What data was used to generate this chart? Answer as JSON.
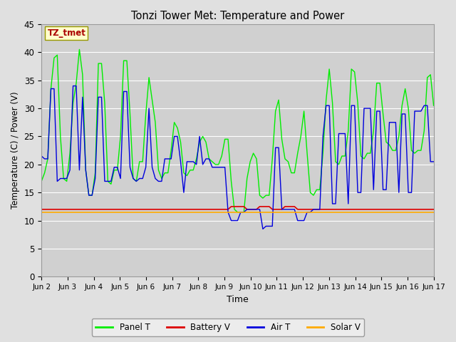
{
  "title": "Tonzi Tower Met: Temperature and Power",
  "xlabel": "Time",
  "ylabel": "Temperature (C) / Power (V)",
  "annotation": "TZ_tmet",
  "xlim": [
    0,
    15
  ],
  "ylim": [
    0,
    45
  ],
  "yticks": [
    0,
    5,
    10,
    15,
    20,
    25,
    30,
    35,
    40,
    45
  ],
  "xtick_labels": [
    "Jun 2",
    "Jun 3",
    "Jun 4",
    "Jun 5",
    "Jun 6",
    "Jun 7",
    "Jun 8",
    "Jun 9",
    "Jun 10",
    "Jun 11",
    "Jun 12",
    "Jun 13",
    "Jun 14",
    "Jun 15",
    "Jun 16",
    "Jun 17"
  ],
  "background_color": "#e0e0e0",
  "plot_bg_color": "#d0d0d0",
  "grid_color": "#ffffff",
  "panel_t_color": "#00ee00",
  "battery_v_color": "#dd0000",
  "air_t_color": "#0000dd",
  "solar_v_color": "#ffaa00",
  "panel_t": [
    17.0,
    18.5,
    21.0,
    33.5,
    39.0,
    39.5,
    25.0,
    17.5,
    17.0,
    22.0,
    31.0,
    34.5,
    40.5,
    36.0,
    19.0,
    14.5,
    14.5,
    18.5,
    38.0,
    38.0,
    31.0,
    17.0,
    16.5,
    19.0,
    19.0,
    25.0,
    38.5,
    38.5,
    29.0,
    17.5,
    17.0,
    20.5,
    20.5,
    29.0,
    35.5,
    31.5,
    27.5,
    19.0,
    17.5,
    18.5,
    18.5,
    22.5,
    27.5,
    26.5,
    24.0,
    18.5,
    18.0,
    19.0,
    19.0,
    21.0,
    24.0,
    25.0,
    24.0,
    21.0,
    20.5,
    20.0,
    20.0,
    21.5,
    24.5,
    24.5,
    17.0,
    12.0,
    11.5,
    11.5,
    11.5,
    17.5,
    20.5,
    22.0,
    21.0,
    14.5,
    14.0,
    14.5,
    14.5,
    21.0,
    29.5,
    31.5,
    24.5,
    21.0,
    20.5,
    18.5,
    18.5,
    22.0,
    25.0,
    29.5,
    22.0,
    15.0,
    14.5,
    15.5,
    15.5,
    22.0,
    31.5,
    37.0,
    31.0,
    20.5,
    20.0,
    21.5,
    21.5,
    26.0,
    37.0,
    36.5,
    31.0,
    21.5,
    21.0,
    22.0,
    22.0,
    26.0,
    34.5,
    34.5,
    29.0,
    24.0,
    23.5,
    22.5,
    22.5,
    25.0,
    30.5,
    33.5,
    30.0,
    22.5,
    22.0,
    22.5,
    22.5,
    26.0,
    35.5,
    36.0,
    30.5
  ],
  "battery_v": [
    12.0,
    12.0,
    12.0,
    12.0,
    12.0,
    12.0,
    12.0,
    12.0,
    12.0,
    12.0,
    12.0,
    12.0,
    12.0,
    12.0,
    12.0,
    12.0,
    12.0,
    12.0,
    12.0,
    12.0,
    12.0,
    12.0,
    12.0,
    12.0,
    12.0,
    12.0,
    12.0,
    12.0,
    12.0,
    12.0,
    12.0,
    12.0,
    12.0,
    12.0,
    12.0,
    12.0,
    12.0,
    12.0,
    12.0,
    12.0,
    12.0,
    12.0,
    12.0,
    12.0,
    12.0,
    12.0,
    12.0,
    12.0,
    12.0,
    12.0,
    12.0,
    12.0,
    12.0,
    12.0,
    12.0,
    12.0,
    12.0,
    12.0,
    12.0,
    12.0,
    12.5,
    12.5,
    12.5,
    12.5,
    12.5,
    12.0,
    12.0,
    12.0,
    12.0,
    12.5,
    12.5,
    12.5,
    12.5,
    12.0,
    12.0,
    12.0,
    12.0,
    12.5,
    12.5,
    12.5,
    12.5,
    12.0,
    12.0,
    12.0,
    12.0,
    12.0,
    12.0,
    12.0,
    12.0,
    12.0,
    12.0,
    12.0,
    12.0,
    12.0,
    12.0,
    12.0,
    12.0,
    12.0,
    12.0,
    12.0,
    12.0,
    12.0,
    12.0,
    12.0,
    12.0,
    12.0,
    12.0,
    12.0,
    12.0,
    12.0,
    12.0,
    12.0,
    12.0,
    12.0,
    12.0,
    12.0,
    12.0,
    12.0,
    12.0,
    12.0,
    12.0,
    12.0,
    12.0,
    12.0,
    12.0
  ],
  "air_t": [
    21.5,
    21.0,
    21.0,
    33.5,
    33.5,
    17.0,
    17.5,
    17.5,
    17.5,
    19.0,
    34.0,
    34.0,
    19.0,
    32.0,
    19.0,
    14.5,
    14.5,
    17.5,
    32.0,
    32.0,
    17.0,
    17.0,
    17.0,
    19.5,
    19.5,
    17.5,
    33.0,
    33.0,
    19.5,
    17.5,
    17.0,
    17.5,
    17.5,
    19.5,
    30.0,
    19.5,
    17.5,
    17.0,
    17.0,
    21.0,
    21.0,
    21.0,
    25.0,
    25.0,
    20.5,
    15.0,
    20.5,
    20.5,
    20.5,
    20.0,
    25.0,
    20.0,
    21.0,
    21.0,
    19.5,
    19.5,
    19.5,
    19.5,
    19.5,
    11.5,
    10.0,
    10.0,
    10.0,
    11.5,
    11.5,
    12.0,
    12.0,
    12.0,
    12.0,
    12.0,
    8.5,
    9.0,
    9.0,
    9.0,
    23.0,
    23.0,
    12.0,
    12.0,
    12.0,
    12.0,
    12.0,
    10.0,
    10.0,
    10.0,
    11.5,
    11.5,
    12.0,
    12.0,
    12.0,
    25.0,
    30.5,
    30.5,
    13.0,
    13.0,
    25.5,
    25.5,
    25.5,
    13.0,
    30.5,
    30.5,
    15.0,
    15.0,
    30.0,
    30.0,
    30.0,
    15.5,
    29.5,
    29.5,
    15.5,
    15.5,
    27.5,
    27.5,
    27.5,
    15.0,
    29.0,
    29.0,
    15.0,
    15.0,
    29.5,
    29.5,
    29.5,
    30.5,
    30.5,
    20.5,
    20.5
  ],
  "solar_v": [
    11.5,
    11.5,
    11.5,
    11.5,
    11.5,
    11.5,
    11.5,
    11.5,
    11.5,
    11.5,
    11.5,
    11.5,
    11.5,
    11.5,
    11.5,
    11.5,
    11.5,
    11.5,
    11.5,
    11.5,
    11.5,
    11.5,
    11.5,
    11.5,
    11.5,
    11.5,
    11.5,
    11.5,
    11.5,
    11.5,
    11.5,
    11.5,
    11.5,
    11.5,
    11.5,
    11.5,
    11.5,
    11.5,
    11.5,
    11.5,
    11.5,
    11.5,
    11.5,
    11.5,
    11.5,
    11.5,
    11.5,
    11.5,
    11.5,
    11.5,
    11.5,
    11.5,
    11.5,
    11.5,
    11.5,
    11.5,
    11.5,
    11.5,
    11.5,
    11.5,
    11.5,
    11.5,
    11.5,
    11.5,
    11.5,
    11.5,
    11.5,
    11.5,
    11.5,
    11.5,
    11.5,
    11.5,
    11.5,
    11.5,
    11.5,
    11.5,
    11.5,
    11.5,
    11.5,
    11.5,
    11.5,
    11.5,
    11.5,
    11.5,
    11.5,
    11.5,
    11.5,
    11.5,
    11.5,
    11.5,
    11.5,
    11.5,
    11.5,
    11.5,
    11.5,
    11.5,
    11.5,
    11.5,
    11.5,
    11.5,
    11.5,
    11.5,
    11.5,
    11.5,
    11.5,
    11.5,
    11.5,
    11.5,
    11.5,
    11.5,
    11.5,
    11.5,
    11.5,
    11.5,
    11.5,
    11.5,
    11.5,
    11.5,
    11.5,
    11.5,
    11.5,
    11.5,
    11.5,
    11.5,
    11.5
  ]
}
